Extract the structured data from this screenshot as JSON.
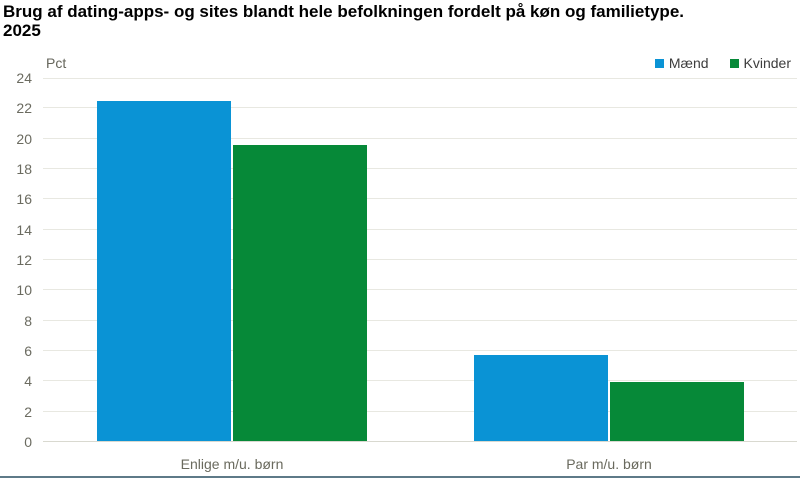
{
  "header": {
    "title_line1": "Brug af dating-apps- og sites blandt hele befolkningen fordelt på køn og familietype.",
    "title_line2": "2025"
  },
  "colors": {
    "maend_blue": "#0a93d5",
    "kvinder_green": "#068938",
    "gridline": "#e8e8e1",
    "axis_text": "#6b6b60",
    "bottom_rule": "#5e7a88"
  },
  "chart_data": {
    "type": "bar",
    "title": "Brug af dating-apps- og sites blandt hele befolkningen fordelt på køn og familietype. 2025",
    "ylabel": "Pct",
    "xlabel": "",
    "categories": [
      "Enlige m/u. børn",
      "Par m/u. børn"
    ],
    "series": [
      {
        "name": "Mænd",
        "color": "#0a93d5",
        "values": [
          22.4,
          5.7
        ]
      },
      {
        "name": "Kvinder",
        "color": "#068938",
        "values": [
          19.5,
          3.9
        ]
      }
    ],
    "ylim": [
      0,
      24
    ],
    "ytick_step": 2,
    "ytick_labels": [
      "0",
      "2",
      "4",
      "6",
      "8",
      "10",
      "12",
      "14",
      "16",
      "18",
      "20",
      "22",
      "24"
    ],
    "grid": "horizontal",
    "legend_position": "top-right"
  }
}
